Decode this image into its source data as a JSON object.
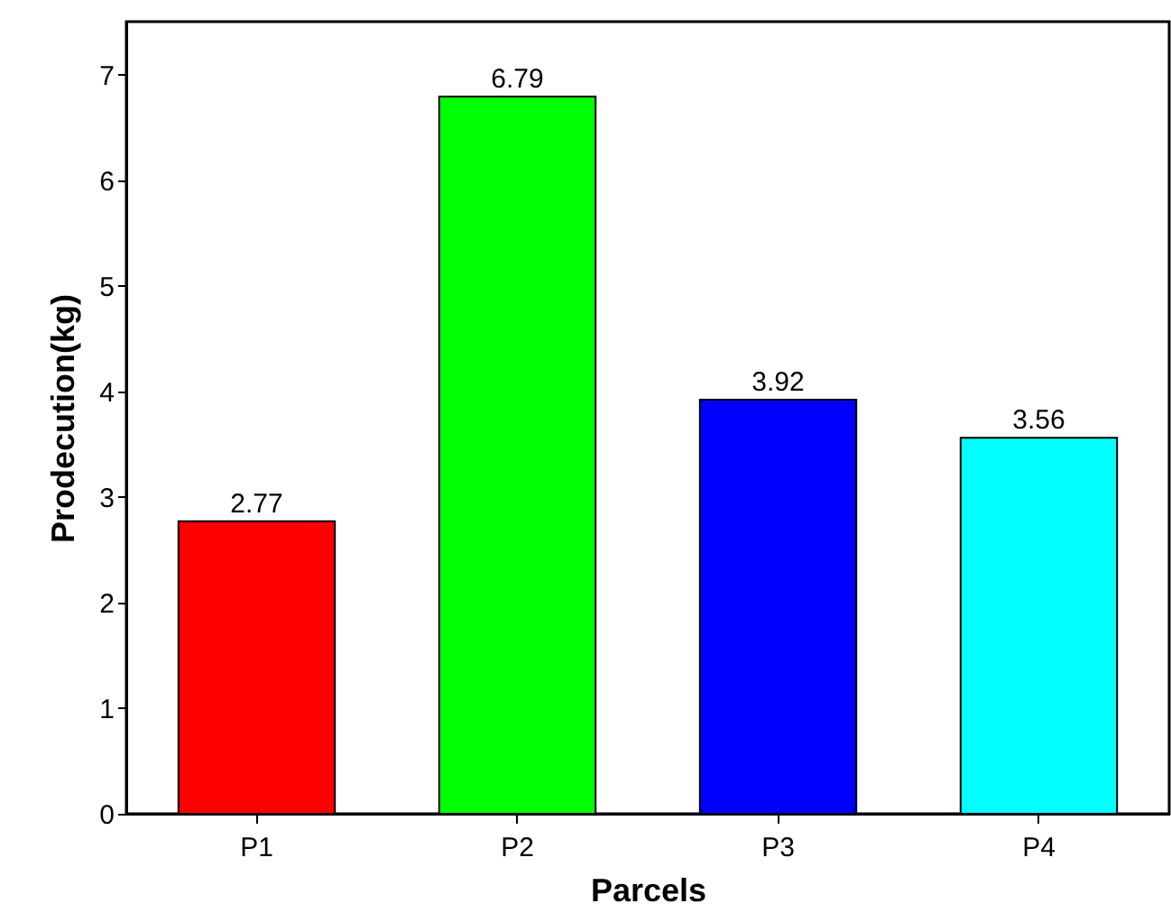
{
  "chart_data": {
    "type": "bar",
    "xlabel": "Parcels",
    "ylabel": "Prodecution(kg)",
    "categories": [
      "P1",
      "P2",
      "P3",
      "P4"
    ],
    "values": [
      2.77,
      6.79,
      3.92,
      3.56
    ],
    "colors": [
      "#ff0000",
      "#00ff00",
      "#0000ff",
      "#00ffff"
    ],
    "ylim": [
      0,
      7.5
    ],
    "yticks": [
      0,
      1,
      2,
      3,
      4,
      5,
      6,
      7
    ],
    "data_labels": true,
    "grid": false
  }
}
